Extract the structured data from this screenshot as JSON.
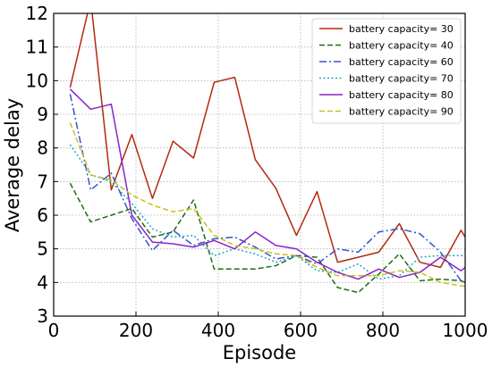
{
  "chart_data": {
    "type": "line",
    "title": "",
    "xlabel": "Episode",
    "ylabel": "Average delay",
    "xlim": [
      0,
      1000
    ],
    "ylim": [
      3,
      12
    ],
    "xticks": [
      0,
      200,
      400,
      600,
      800,
      1000
    ],
    "yticks": [
      3,
      4,
      5,
      6,
      7,
      8,
      9,
      10,
      11,
      12
    ],
    "grid": true,
    "legend_position": "top-right",
    "x": [
      40,
      90,
      140,
      190,
      240,
      290,
      340,
      390,
      440,
      490,
      540,
      590,
      640,
      690,
      740,
      790,
      840,
      890,
      940,
      990,
      1000
    ],
    "series": [
      {
        "name": "battery capacity= 30",
        "color": "#b22a0d",
        "dash": "solid",
        "values": [
          9.8,
          12.4,
          6.75,
          8.4,
          6.5,
          8.2,
          7.7,
          9.95,
          10.1,
          7.65,
          6.8,
          5.4,
          6.7,
          4.6,
          4.75,
          4.9,
          5.75,
          4.6,
          4.45,
          5.55,
          5.35
        ]
      },
      {
        "name": "battery capacity= 40",
        "color": "#1f6e10",
        "dash": "dash",
        "values": [
          6.95,
          5.8,
          6.0,
          6.2,
          5.35,
          5.5,
          6.45,
          4.4,
          4.4,
          4.4,
          4.5,
          4.8,
          4.75,
          3.85,
          3.7,
          4.25,
          4.85,
          4.05,
          4.1,
          4.05,
          4.0
        ]
      },
      {
        "name": "battery capacity= 60",
        "color": "#3355cc",
        "dash": "dashdot",
        "values": [
          9.6,
          6.75,
          7.25,
          5.9,
          4.95,
          5.55,
          5.1,
          5.3,
          5.35,
          5.05,
          4.7,
          4.8,
          4.55,
          5.0,
          4.9,
          5.5,
          5.6,
          5.45,
          4.9,
          4.05,
          4.0
        ]
      },
      {
        "name": "battery capacity= 70",
        "color": "#2aa3c2",
        "dash": "dot",
        "values": [
          8.1,
          7.2,
          7.0,
          6.35,
          5.6,
          5.35,
          5.4,
          4.8,
          5.0,
          4.85,
          4.6,
          4.8,
          4.35,
          4.3,
          4.55,
          4.1,
          4.2,
          4.75,
          4.8,
          4.8,
          4.8
        ]
      },
      {
        "name": "battery capacity= 80",
        "color": "#8a22cc",
        "dash": "solid",
        "values": [
          9.75,
          9.15,
          9.3,
          6.0,
          5.2,
          5.15,
          5.05,
          5.25,
          5.0,
          5.5,
          5.1,
          5.0,
          4.6,
          4.3,
          4.1,
          4.4,
          4.15,
          4.3,
          4.75,
          4.35,
          4.45
        ]
      },
      {
        "name": "battery capacity= 90",
        "color": "#c8c21a",
        "dash": "dash",
        "values": [
          8.75,
          7.2,
          7.05,
          6.6,
          6.3,
          6.1,
          6.2,
          5.4,
          5.1,
          5.0,
          4.85,
          4.8,
          4.45,
          4.2,
          4.2,
          4.2,
          4.35,
          4.3,
          4.0,
          3.9,
          3.9
        ]
      }
    ]
  }
}
